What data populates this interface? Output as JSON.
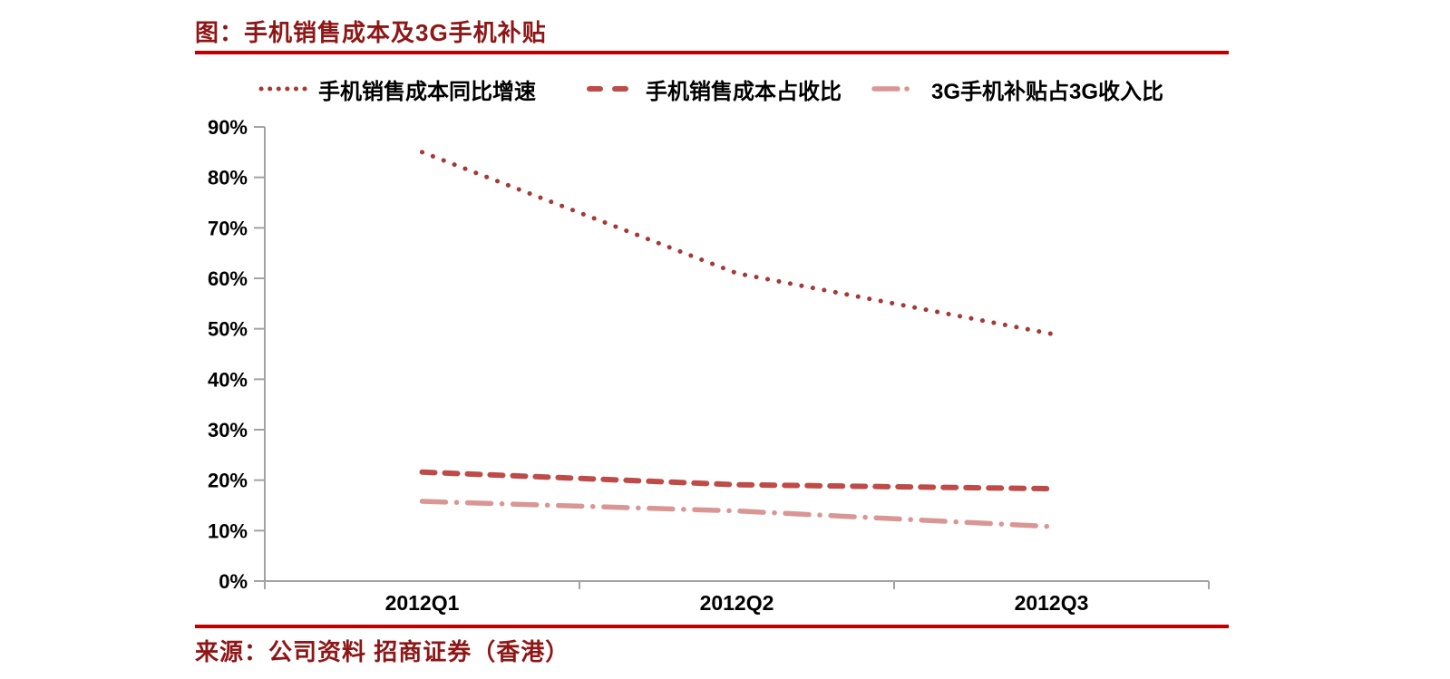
{
  "title": "图：手机销售成本及3G手机补贴",
  "source": "来源：公司资料 招商证券（香港）",
  "colors": {
    "title_red": "#8E1616",
    "rule_red": "#C00000",
    "axis_gray": "#A3A3A3",
    "tick_label": "#000000"
  },
  "chart_data": {
    "type": "line",
    "title": "手机销售成本及3G手机补贴",
    "categories": [
      "2012Q1",
      "2012Q2",
      "2012Q3"
    ],
    "series": [
      {
        "name": "手机销售成本同比增速",
        "style": "dotted",
        "color": "#A43936",
        "values": [
          85,
          61,
          49
        ]
      },
      {
        "name": "手机销售成本占收比",
        "style": "dashed",
        "color": "#BE4B48",
        "values": [
          21.6,
          19.1,
          18.3
        ]
      },
      {
        "name": "3G手机补贴占3G收入比",
        "style": "dashdot",
        "color": "#D99694",
        "values": [
          15.8,
          13.9,
          10.8
        ]
      }
    ],
    "xlabel": "",
    "ylabel": "",
    "ylim": [
      0,
      90
    ],
    "ytick_step": 10,
    "yticks": [
      "0%",
      "10%",
      "20%",
      "30%",
      "40%",
      "50%",
      "60%",
      "70%",
      "80%",
      "90%"
    ],
    "grid": false,
    "legend_position": "top"
  }
}
